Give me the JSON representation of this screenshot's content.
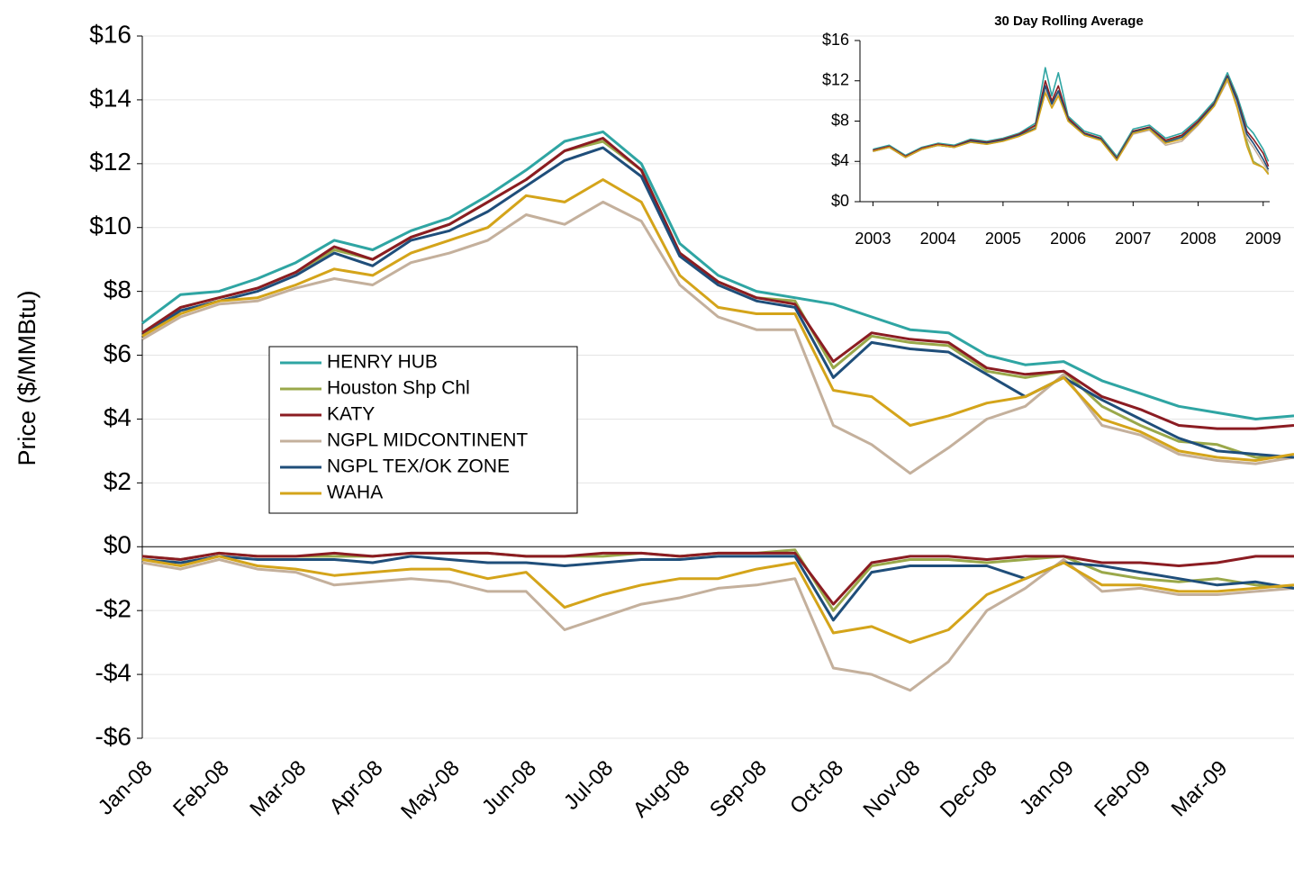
{
  "chart_data": [
    {
      "type": "line",
      "ylabel": "Price ($/MMBtu)",
      "categories": [
        "Jan-08",
        null,
        "Feb-08",
        null,
        "Mar-08",
        null,
        "Apr-08",
        null,
        "May-08",
        null,
        "Jun-08",
        null,
        "Jul-08",
        null,
        "Aug-08",
        null,
        "Sep-08",
        null,
        "Oct-08",
        null,
        "Nov-08",
        null,
        "Dec-08",
        null,
        "Jan-09",
        null,
        "Feb-09",
        null,
        "Mar-09",
        null,
        null
      ],
      "ylim": [
        -6,
        16
      ],
      "yticks": [
        {
          "value": -6,
          "label": "-$6"
        },
        {
          "value": -4,
          "label": "-$4"
        },
        {
          "value": -2,
          "label": "-$2"
        },
        {
          "value": 0,
          "label": "$0"
        },
        {
          "value": 2,
          "label": "$2"
        },
        {
          "value": 4,
          "label": "$4"
        },
        {
          "value": 6,
          "label": "$6"
        },
        {
          "value": 8,
          "label": "$8"
        },
        {
          "value": 10,
          "label": "$10"
        },
        {
          "value": 12,
          "label": "$12"
        },
        {
          "value": 14,
          "label": "$14"
        },
        {
          "value": 16,
          "label": "$16"
        }
      ],
      "grid": true,
      "series": [
        {
          "name": "HENRY HUB",
          "color": "#2fa5a3",
          "values": [
            7.0,
            7.9,
            8.0,
            8.4,
            8.9,
            9.6,
            9.3,
            9.9,
            10.3,
            11.0,
            11.8,
            12.7,
            13.0,
            12.0,
            9.5,
            8.5,
            8.0,
            7.8,
            7.6,
            7.2,
            6.8,
            6.7,
            6.0,
            5.7,
            5.8,
            5.2,
            4.8,
            4.4,
            4.2,
            4.0,
            4.1
          ]
        },
        {
          "name": "Houston Shp Chl",
          "color": "#9aa84a",
          "values": [
            6.7,
            7.5,
            7.8,
            8.1,
            8.6,
            9.3,
            9.0,
            9.7,
            10.1,
            10.8,
            11.5,
            12.4,
            12.7,
            11.8,
            9.2,
            8.3,
            7.8,
            7.7,
            5.6,
            6.6,
            6.4,
            6.3,
            5.5,
            5.3,
            5.5,
            4.4,
            3.8,
            3.3,
            3.2,
            2.8,
            2.8
          ]
        },
        {
          "name": "KATY",
          "color": "#8b1c22",
          "values": [
            6.7,
            7.5,
            7.8,
            8.1,
            8.6,
            9.4,
            9.0,
            9.7,
            10.1,
            10.8,
            11.5,
            12.4,
            12.8,
            11.8,
            9.2,
            8.3,
            7.8,
            7.6,
            5.8,
            6.7,
            6.5,
            6.4,
            5.6,
            5.4,
            5.5,
            4.7,
            4.3,
            3.8,
            3.7,
            3.7,
            3.8
          ]
        },
        {
          "name": "NGPL MIDCONTINENT",
          "color": "#c4b09c",
          "values": [
            6.5,
            7.2,
            7.6,
            7.7,
            8.1,
            8.4,
            8.2,
            8.9,
            9.2,
            9.6,
            10.4,
            10.1,
            10.8,
            10.2,
            8.2,
            7.2,
            6.8,
            6.8,
            3.8,
            3.2,
            2.3,
            3.1,
            4.0,
            4.4,
            5.4,
            3.8,
            3.5,
            2.9,
            2.7,
            2.6,
            2.8
          ]
        },
        {
          "name": "NGPL TEX/OK ZONE",
          "color": "#1f4e7a",
          "values": [
            6.6,
            7.4,
            7.7,
            8.0,
            8.5,
            9.2,
            8.8,
            9.6,
            9.9,
            10.5,
            11.3,
            12.1,
            12.5,
            11.6,
            9.1,
            8.2,
            7.7,
            7.5,
            5.3,
            6.4,
            6.2,
            6.1,
            5.4,
            4.7,
            5.3,
            4.6,
            4.0,
            3.4,
            3.0,
            2.9,
            2.8
          ]
        },
        {
          "name": "WAHA",
          "color": "#d4a41a",
          "values": [
            6.6,
            7.3,
            7.7,
            7.8,
            8.2,
            8.7,
            8.5,
            9.2,
            9.6,
            10.0,
            11.0,
            10.8,
            11.5,
            10.8,
            8.5,
            7.5,
            7.3,
            7.3,
            4.9,
            4.7,
            3.8,
            4.1,
            4.5,
            4.7,
            5.3,
            4.0,
            3.6,
            3.0,
            2.8,
            2.7,
            2.9
          ]
        }
      ],
      "basis_series": [
        {
          "color": "#9aa84a",
          "values": [
            -0.3,
            -0.4,
            -0.2,
            -0.3,
            -0.3,
            -0.3,
            -0.3,
            -0.2,
            -0.2,
            -0.2,
            -0.3,
            -0.3,
            -0.3,
            -0.2,
            -0.3,
            -0.2,
            -0.2,
            -0.1,
            -2.0,
            -0.6,
            -0.4,
            -0.4,
            -0.5,
            -0.4,
            -0.3,
            -0.8,
            -1.0,
            -1.1,
            -1.0,
            -1.2,
            -1.3
          ]
        },
        {
          "color": "#8b1c22",
          "values": [
            -0.3,
            -0.4,
            -0.2,
            -0.3,
            -0.3,
            -0.2,
            -0.3,
            -0.2,
            -0.2,
            -0.2,
            -0.3,
            -0.3,
            -0.2,
            -0.2,
            -0.3,
            -0.2,
            -0.2,
            -0.2,
            -1.8,
            -0.5,
            -0.3,
            -0.3,
            -0.4,
            -0.3,
            -0.3,
            -0.5,
            -0.5,
            -0.6,
            -0.5,
            -0.3,
            -0.3
          ]
        },
        {
          "color": "#c4b09c",
          "values": [
            -0.5,
            -0.7,
            -0.4,
            -0.7,
            -0.8,
            -1.2,
            -1.1,
            -1.0,
            -1.1,
            -1.4,
            -1.4,
            -2.6,
            -2.2,
            -1.8,
            -1.6,
            -1.3,
            -1.2,
            -1.0,
            -3.8,
            -4.0,
            -4.5,
            -3.6,
            -2.0,
            -1.3,
            -0.4,
            -1.4,
            -1.3,
            -1.5,
            -1.5,
            -1.4,
            -1.3
          ]
        },
        {
          "color": "#1f4e7a",
          "values": [
            -0.4,
            -0.5,
            -0.3,
            -0.4,
            -0.4,
            -0.4,
            -0.5,
            -0.3,
            -0.4,
            -0.5,
            -0.5,
            -0.6,
            -0.5,
            -0.4,
            -0.4,
            -0.3,
            -0.3,
            -0.3,
            -2.3,
            -0.8,
            -0.6,
            -0.6,
            -0.6,
            -1.0,
            -0.5,
            -0.6,
            -0.8,
            -1.0,
            -1.2,
            -1.1,
            -1.3
          ]
        },
        {
          "color": "#d4a41a",
          "values": [
            -0.4,
            -0.6,
            -0.3,
            -0.6,
            -0.7,
            -0.9,
            -0.8,
            -0.7,
            -0.7,
            -1.0,
            -0.8,
            -1.9,
            -1.5,
            -1.2,
            -1.0,
            -1.0,
            -0.7,
            -0.5,
            -2.7,
            -2.5,
            -3.0,
            -2.6,
            -1.5,
            -1.0,
            -0.5,
            -1.2,
            -1.2,
            -1.4,
            -1.4,
            -1.3,
            -1.2
          ]
        }
      ]
    },
    {
      "type": "line",
      "title": "30 Day Rolling Average",
      "x": [
        2003.0,
        2003.25,
        2003.5,
        2003.75,
        2004.0,
        2004.25,
        2004.5,
        2004.75,
        2005.0,
        2005.25,
        2005.5,
        2005.65,
        2005.75,
        2005.85,
        2006.0,
        2006.25,
        2006.5,
        2006.75,
        2007.0,
        2007.25,
        2007.5,
        2007.75,
        2008.0,
        2008.25,
        2008.45,
        2008.6,
        2008.75,
        2008.85,
        2009.0,
        2009.08
      ],
      "xlim": [
        2002.8,
        2009.1
      ],
      "xticks": [
        2003,
        2004,
        2005,
        2006,
        2007,
        2008,
        2009
      ],
      "ylim": [
        0,
        16
      ],
      "yticks": [
        {
          "value": 0,
          "label": "$0"
        },
        {
          "value": 4,
          "label": "$4"
        },
        {
          "value": 8,
          "label": "$8"
        },
        {
          "value": 12,
          "label": "$12"
        },
        {
          "value": 16,
          "label": "$16"
        }
      ],
      "grid": false,
      "series": [
        {
          "color": "#2fa5a3",
          "values": [
            5.2,
            5.6,
            4.6,
            5.4,
            5.8,
            5.6,
            6.2,
            6.0,
            6.3,
            6.8,
            7.8,
            13.3,
            10.5,
            12.8,
            8.5,
            7.0,
            6.5,
            4.5,
            7.2,
            7.6,
            6.3,
            6.8,
            8.2,
            10.0,
            12.8,
            10.5,
            7.5,
            6.8,
            5.2,
            4.0
          ]
        },
        {
          "color": "#9aa84a",
          "values": [
            5.1,
            5.5,
            4.5,
            5.3,
            5.7,
            5.5,
            6.1,
            5.9,
            6.2,
            6.7,
            7.5,
            11.5,
            9.8,
            11.0,
            8.2,
            6.8,
            6.3,
            4.3,
            7.0,
            7.4,
            6.0,
            6.5,
            7.9,
            9.6,
            12.3,
            9.5,
            6.0,
            4.0,
            3.4,
            2.8
          ]
        },
        {
          "color": "#8b1c22",
          "values": [
            5.1,
            5.5,
            4.5,
            5.3,
            5.7,
            5.5,
            6.1,
            5.9,
            6.2,
            6.7,
            7.6,
            12.0,
            10.0,
            11.5,
            8.3,
            6.8,
            6.3,
            4.3,
            7.0,
            7.4,
            6.1,
            6.6,
            8.0,
            9.8,
            12.5,
            10.2,
            7.0,
            6.2,
            4.8,
            3.5
          ]
        },
        {
          "color": "#c4b09c",
          "values": [
            5.0,
            5.4,
            4.4,
            5.2,
            5.6,
            5.4,
            5.9,
            5.7,
            6.0,
            6.5,
            7.2,
            11.0,
            9.5,
            10.8,
            8.0,
            6.6,
            6.1,
            4.1,
            6.7,
            7.1,
            5.6,
            6.0,
            7.6,
            9.5,
            12.0,
            9.6,
            6.3,
            5.4,
            3.8,
            3.0
          ]
        },
        {
          "color": "#1f4e7a",
          "values": [
            5.0,
            5.4,
            4.4,
            5.2,
            5.6,
            5.4,
            6.0,
            5.8,
            6.1,
            6.6,
            7.3,
            11.5,
            9.7,
            11.0,
            8.1,
            6.7,
            6.2,
            4.2,
            6.9,
            7.3,
            5.9,
            6.4,
            7.8,
            9.7,
            12.4,
            10.0,
            6.7,
            5.8,
            4.2,
            3.2
          ]
        },
        {
          "color": "#d4a41a",
          "values": [
            5.0,
            5.4,
            4.4,
            5.2,
            5.6,
            5.4,
            5.9,
            5.7,
            6.0,
            6.5,
            7.2,
            10.8,
            9.3,
            10.5,
            8.0,
            6.6,
            6.1,
            4.1,
            6.8,
            7.2,
            5.8,
            6.2,
            7.7,
            9.5,
            12.2,
            9.3,
            5.5,
            3.8,
            3.4,
            2.7
          ]
        }
      ]
    }
  ]
}
